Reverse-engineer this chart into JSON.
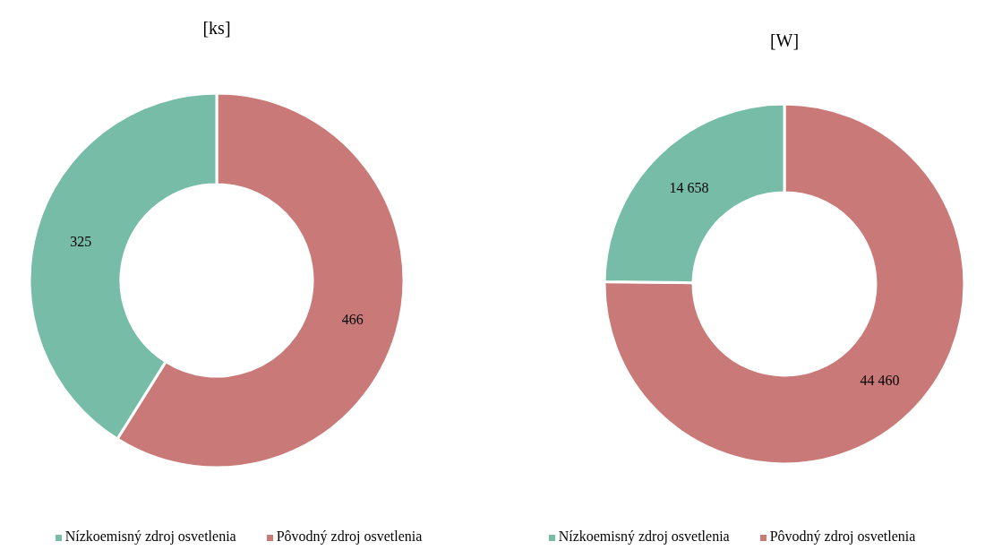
{
  "chart_data": [
    {
      "type": "donut",
      "title": "[ks]",
      "categories": [
        "Pôvodný zdroj osvetlenia",
        "Nízkoemisný zdroj osvetlenia"
      ],
      "values": [
        466,
        325
      ],
      "colors": [
        "#c97a78",
        "#76bca7"
      ],
      "value_labels": [
        "466",
        "325"
      ],
      "legend": "bottom"
    },
    {
      "type": "donut",
      "title": "[W]",
      "categories": [
        "Pôvodný zdroj osvetlenia",
        "Nízkoemisný zdroj osvetlenia"
      ],
      "values": [
        44460,
        14658
      ],
      "colors": [
        "#c97a78",
        "#76bca7"
      ],
      "value_labels": [
        "44 460",
        "14 658"
      ],
      "legend": "bottom"
    }
  ]
}
